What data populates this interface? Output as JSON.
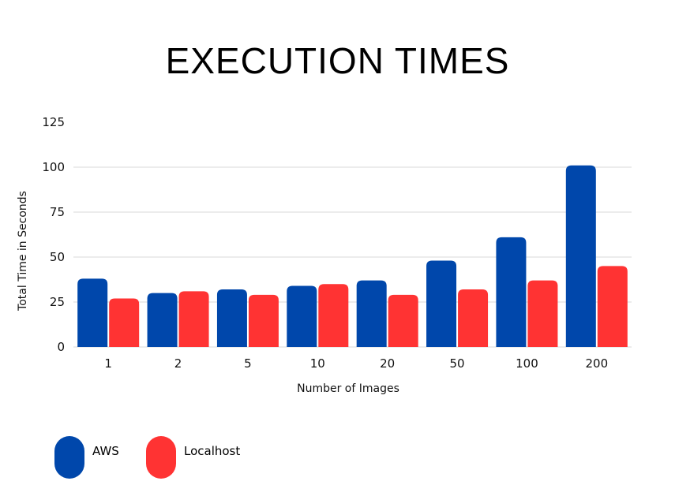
{
  "chart_data": {
    "type": "bar",
    "title": "EXECUTION TIMES",
    "xlabel": "Number of Images",
    "ylabel": "Total Time in Seconds",
    "ylim": [
      0,
      125
    ],
    "yticks": [
      "0",
      "25",
      "50",
      "75",
      "100",
      "125"
    ],
    "categories": [
      "1",
      "2",
      "5",
      "10",
      "20",
      "50",
      "100",
      "200"
    ],
    "series": [
      {
        "name": "AWS",
        "color": "#0047AB",
        "values": [
          38,
          30,
          32,
          34,
          37,
          48,
          61,
          101
        ]
      },
      {
        "name": "Localhost",
        "color": "#FF3333",
        "values": [
          27,
          31,
          29,
          35,
          29,
          32,
          37,
          45
        ]
      }
    ],
    "grid": true,
    "legend_position": "bottom-left"
  }
}
